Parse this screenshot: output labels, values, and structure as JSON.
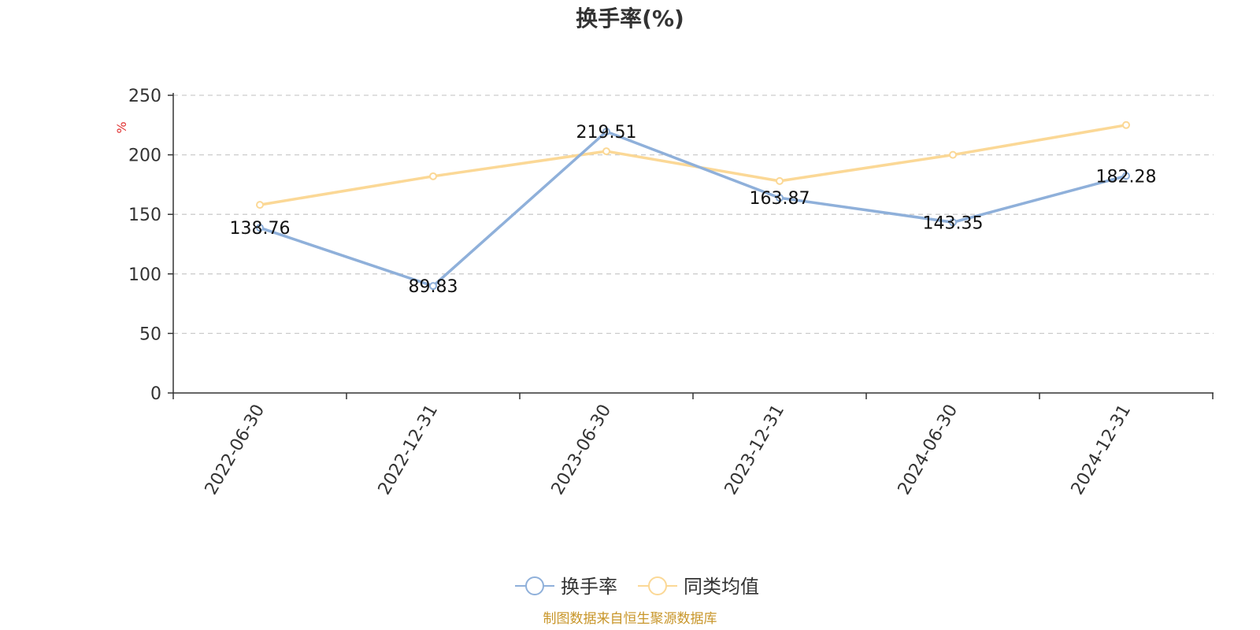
{
  "chart_data": {
    "type": "line",
    "title": "换手率(%)",
    "ylabel": "%",
    "xlabel": "",
    "ylim": [
      0,
      250
    ],
    "yticks": [
      0,
      50,
      100,
      150,
      200,
      250
    ],
    "categories": [
      "2022-06-30",
      "2022-12-31",
      "2023-06-30",
      "2023-12-31",
      "2024-06-30",
      "2024-12-31"
    ],
    "series": [
      {
        "name": "换手率",
        "color": "#8fb0da",
        "values": [
          138.76,
          89.83,
          219.51,
          163.87,
          143.35,
          182.28
        ],
        "labels": [
          "138.76",
          "89.83",
          "219.51",
          "163.87",
          "143.35",
          "182.28"
        ]
      },
      {
        "name": "同类均值",
        "color": "#fbd896",
        "values": [
          158,
          182,
          203,
          178,
          200,
          225
        ]
      }
    ],
    "grid": true,
    "legend_position": "bottom-center"
  },
  "source": "制图数据来自恒生聚源数据库",
  "colors": {
    "unit": "#e03030",
    "source": "#c8962a",
    "axis": "#333333",
    "grid": "#cccccc"
  }
}
